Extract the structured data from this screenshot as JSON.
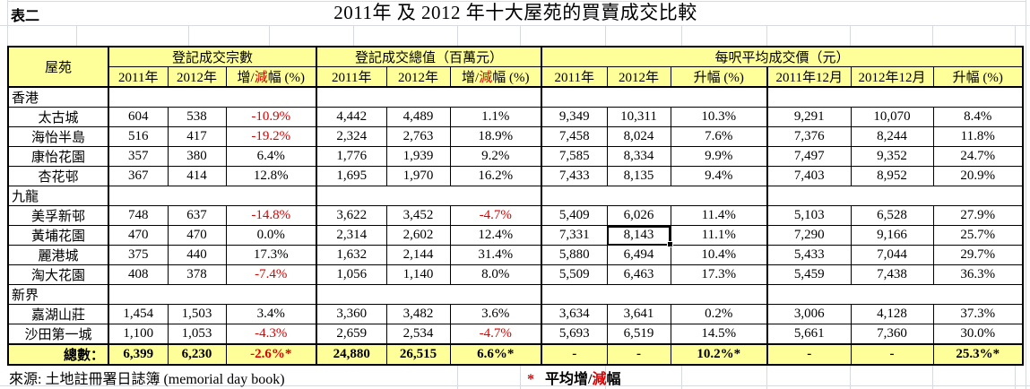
{
  "sheet": {
    "table_label": "表二",
    "title": "2011年 及 2012 年十大屋苑的買賣成交比較"
  },
  "header": {
    "estate_col": "屋苑",
    "group_transactions": "登記成交宗數",
    "group_value": "登記成交總值（百萬元）",
    "group_price": "每呎平均成交價（元）",
    "col_2011": "2011年",
    "col_2012": "2012年",
    "col_dec2011": "2011年12月",
    "col_dec2012": "2012年12月",
    "change_parts": {
      "pre": "增/",
      "red": "減",
      "post": "幅 (%)"
    },
    "rise_label": "升幅 (%)"
  },
  "rows": [
    {
      "type": "section",
      "name": "香港"
    },
    {
      "type": "estate",
      "name": "太古城",
      "values": [
        "604",
        "538",
        "-10.9%",
        "4,442",
        "4,489",
        "1.1%",
        "9,349",
        "10,311",
        "10.3%",
        "9,291",
        "10,070",
        "8.4%"
      ]
    },
    {
      "type": "estate",
      "name": "海怡半島",
      "values": [
        "516",
        "417",
        "-19.2%",
        "2,324",
        "2,763",
        "18.9%",
        "7,458",
        "8,024",
        "7.6%",
        "7,376",
        "8,244",
        "11.8%"
      ]
    },
    {
      "type": "estate",
      "name": "康怡花園",
      "values": [
        "357",
        "380",
        "6.4%",
        "1,776",
        "1,939",
        "9.2%",
        "7,585",
        "8,334",
        "9.9%",
        "7,497",
        "9,352",
        "24.7%"
      ]
    },
    {
      "type": "estate",
      "name": "杏花邨",
      "values": [
        "367",
        "414",
        "12.8%",
        "1,695",
        "1,970",
        "16.2%",
        "7,433",
        "8,135",
        "9.4%",
        "7,403",
        "8,952",
        "20.9%"
      ]
    },
    {
      "type": "section",
      "name": "九龍"
    },
    {
      "type": "estate",
      "name": "美孚新邨",
      "values": [
        "748",
        "637",
        "-14.8%",
        "3,622",
        "3,452",
        "-4.7%",
        "5,409",
        "6,026",
        "11.4%",
        "5,103",
        "6,528",
        "27.9%"
      ]
    },
    {
      "type": "estate",
      "name": "黃埔花園",
      "values": [
        "470",
        "470",
        "0.0%",
        "2,314",
        "2,602",
        "12.4%",
        "7,331",
        "8,143",
        "11.1%",
        "7,290",
        "9,166",
        "25.7%"
      ],
      "selected_col": 7
    },
    {
      "type": "estate",
      "name": "麗港城",
      "values": [
        "375",
        "440",
        "17.3%",
        "1,632",
        "2,144",
        "31.4%",
        "5,880",
        "6,494",
        "10.4%",
        "5,433",
        "7,044",
        "29.7%"
      ]
    },
    {
      "type": "estate",
      "name": "淘大花園",
      "values": [
        "408",
        "378",
        "-7.4%",
        "1,056",
        "1,140",
        "8.0%",
        "5,509",
        "6,463",
        "17.3%",
        "5,459",
        "7,438",
        "36.3%"
      ]
    },
    {
      "type": "section",
      "name": "新界"
    },
    {
      "type": "estate",
      "name": "嘉湖山莊",
      "values": [
        "1,454",
        "1,503",
        "3.4%",
        "3,360",
        "3,482",
        "3.6%",
        "3,634",
        "3,641",
        "0.2%",
        "3,006",
        "4,128",
        "37.3%"
      ]
    },
    {
      "type": "estate",
      "name": "沙田第一城",
      "values": [
        "1,100",
        "1,053",
        "-4.3%",
        "2,659",
        "2,534",
        "-4.7%",
        "5,693",
        "6,519",
        "14.5%",
        "5,661",
        "7,360",
        "30.0%"
      ]
    }
  ],
  "total": {
    "label": "總數：",
    "values": [
      "6,399",
      "6,230",
      "-2.6%*",
      "24,880",
      "26,515",
      "6.6%*",
      "-",
      "-",
      "10.2%*",
      "-",
      "-",
      "25.3%*"
    ]
  },
  "footer": {
    "source": "來源: 土地註冊署日誌簿 (memorial day book)",
    "note": {
      "star": "*",
      "pre": " 平均增/",
      "red": "減",
      "post": "幅"
    }
  },
  "colors": {
    "header_bg": "#FFFF99",
    "negative_text": "#DD0000",
    "gridline": "#D7DAE0"
  }
}
